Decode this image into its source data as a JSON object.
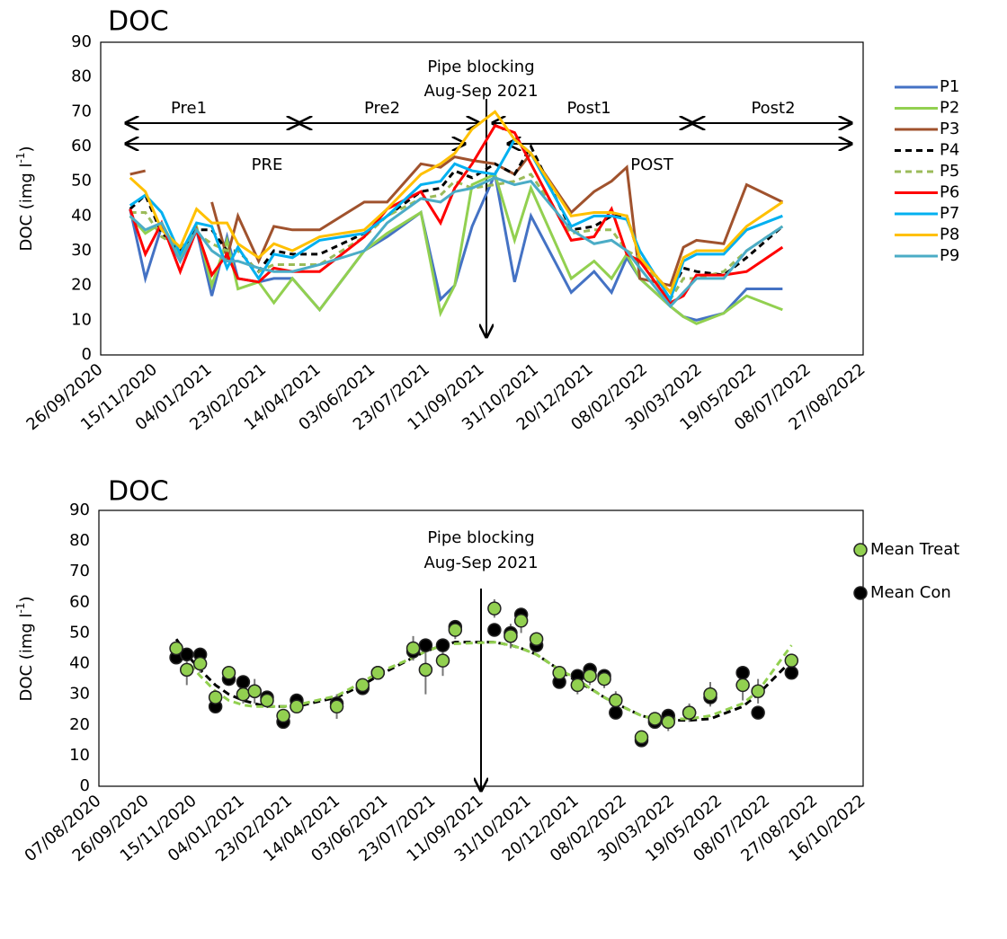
{
  "chart_data": [
    {
      "type": "line",
      "title": "DOC",
      "y_label": "DOC  (img l",
      "y_label_sup": "-1",
      "y_label_end": ")",
      "x": [
        "23/10/2020",
        "06/11/2020",
        "21/11/2020",
        "08/12/2020",
        "23/12/2020",
        "06/01/2021",
        "20/01/2021",
        "30/01/2021",
        "18/02/2021",
        "04/03/2021",
        "21/03/2021",
        "15/04/2021",
        "26/05/2021",
        "16/06/2021",
        "17/07/2021",
        "04/08/2021",
        "17/08/2021",
        "02/09/2021",
        "23/09/2021",
        "11/10/2021",
        "26/10/2021",
        "02/12/2021",
        "23/12/2021",
        "08/01/2022",
        "22/01/2022",
        "03/02/2022",
        "03/03/2022",
        "15/03/2022",
        "27/03/2022",
        "21/04/2022",
        "12/05/2022",
        "14/06/2022"
      ],
      "series": [
        {
          "name": "P1",
          "color": "#4472c4",
          "dash": false,
          "values": [
            42,
            22,
            37,
            27,
            36,
            17,
            34,
            22,
            21,
            22,
            22,
            13,
            30,
            34,
            41,
            16,
            20,
            37,
            52,
            21,
            40,
            18,
            24,
            18,
            28,
            22,
            14,
            11,
            10,
            12,
            19,
            19
          ]
        },
        {
          "name": "P2",
          "color": "#92d050",
          "dash": false,
          "values": [
            40,
            35,
            38,
            28,
            37,
            20,
            33,
            19,
            21,
            15,
            22,
            13,
            30,
            35,
            41,
            12,
            20,
            49,
            52,
            33,
            48,
            22,
            27,
            22,
            29,
            22,
            14,
            11,
            9,
            12,
            17,
            13
          ]
        },
        {
          "name": "P3",
          "color": "#a0522d",
          "dash": false,
          "values": [
            52,
            53,
            null,
            null,
            null,
            44,
            28,
            40,
            27,
            37,
            36,
            36,
            44,
            44,
            55,
            54,
            57,
            56,
            55,
            52,
            58,
            41,
            47,
            50,
            54,
            22,
            20,
            31,
            33,
            32,
            49,
            44
          ]
        },
        {
          "name": "P4",
          "color": "#000000",
          "dash": true,
          "values": [
            42,
            46,
            35,
            30,
            36,
            36,
            30,
            30,
            24,
            30,
            29,
            29,
            35,
            40,
            47,
            48,
            53,
            51,
            55,
            52,
            60,
            36,
            37,
            40,
            40,
            28,
            18,
            25,
            24,
            23,
            28,
            37
          ]
        },
        {
          "name": "P5",
          "color": "#9bbb59",
          "dash": true,
          "values": [
            41,
            41,
            34,
            31,
            35,
            32,
            30,
            30,
            24,
            26,
            26,
            26,
            34,
            40,
            45,
            46,
            50,
            48,
            49,
            50,
            52,
            35,
            36,
            36,
            30,
            28,
            16,
            22,
            22,
            24,
            30,
            37
          ]
        },
        {
          "name": "P6",
          "color": "#ff0000",
          "dash": false,
          "values": [
            42,
            29,
            38,
            24,
            36,
            23,
            29,
            22,
            21,
            25,
            24,
            24,
            34,
            42,
            47,
            38,
            48,
            55,
            66,
            64,
            55,
            33,
            34,
            42,
            29,
            27,
            15,
            17,
            23,
            23,
            24,
            31
          ]
        },
        {
          "name": "P7",
          "color": "#00b0f0",
          "dash": false,
          "values": [
            43,
            46,
            41,
            29,
            38,
            37,
            25,
            31,
            22,
            29,
            28,
            33,
            35,
            40,
            49,
            50,
            55,
            53,
            52,
            62,
            58,
            37,
            40,
            40,
            39,
            30,
            16,
            27,
            29,
            29,
            36,
            40
          ]
        },
        {
          "name": "P8",
          "color": "#ffc000",
          "dash": false,
          "values": [
            51,
            47,
            36,
            31,
            42,
            38,
            38,
            32,
            28,
            32,
            30,
            34,
            36,
            42,
            52,
            55,
            58,
            65,
            70,
            62,
            58,
            40,
            41,
            41,
            40,
            28,
            18,
            28,
            30,
            30,
            37,
            44
          ]
        },
        {
          "name": "P9",
          "color": "#4bacc6",
          "dash": false,
          "values": [
            40,
            36,
            38,
            27,
            36,
            30,
            27,
            27,
            25,
            24,
            24,
            26,
            30,
            38,
            45,
            44,
            47,
            48,
            51,
            49,
            50,
            36,
            32,
            33,
            30,
            25,
            14,
            18,
            22,
            22,
            30,
            37
          ]
        }
      ],
      "xlim": [
        "26/09/2020",
        "27/08/2022"
      ],
      "xticks": [
        "26/09/2020",
        "15/11/2020",
        "04/01/2021",
        "23/02/2021",
        "14/04/2021",
        "03/06/2021",
        "23/07/2021",
        "11/09/2021",
        "31/10/2021",
        "20/12/2021",
        "08/02/2022",
        "30/03/2022",
        "19/05/2022",
        "08/07/2022",
        "27/08/2022"
      ],
      "ylim": [
        0,
        90
      ],
      "yticks": [
        0,
        10,
        20,
        30,
        40,
        50,
        60,
        70,
        80,
        90
      ],
      "grid": false,
      "legend": "right",
      "annotations": {
        "event": "Pipe blocking",
        "period": "Aug-Sep 2021",
        "pre1": "Pre1",
        "pre2": "Pre2",
        "post1": "Post1",
        "post2": "Post2",
        "pre": "PRE",
        "post": "POST"
      }
    },
    {
      "type": "scatter",
      "title": "DOC",
      "y_label": "DOC  (img l",
      "y_label_sup": "-1",
      "y_label_end": ")",
      "x": [
        "27/10/2020",
        "07/11/2020",
        "21/11/2020",
        "07/12/2020",
        "21/12/2020",
        "05/01/2021",
        "17/01/2021",
        "30/01/2021",
        "16/02/2021",
        "02/03/2021",
        "13/04/2021",
        "10/05/2021",
        "26/05/2021",
        "02/07/2021",
        "15/07/2021",
        "02/08/2021",
        "15/08/2021",
        "25/09/2021",
        "12/10/2021",
        "23/10/2021",
        "08/11/2021",
        "02/12/2021",
        "21/12/2021",
        "03/01/2022",
        "18/01/2022",
        "30/01/2022",
        "26/02/2022",
        "12/03/2022",
        "26/03/2022",
        "17/04/2022",
        "09/05/2022",
        "12/06/2022",
        "28/06/2022",
        "02/08/2022"
      ],
      "series": [
        {
          "name": "Mean Treat",
          "color": "#92d050",
          "values": [
            45,
            38,
            40,
            29,
            37,
            30,
            31,
            28,
            23,
            26,
            26,
            33,
            37,
            45,
            38,
            41,
            51,
            58,
            49,
            54,
            48,
            37,
            33,
            36,
            35,
            28,
            16,
            22,
            21,
            24,
            30,
            33,
            31,
            41
          ],
          "errors": [
            2,
            5,
            3,
            2,
            2,
            3,
            4,
            2,
            2,
            2,
            4,
            2,
            2,
            4,
            8,
            5,
            3,
            3,
            4,
            4,
            2,
            2,
            3,
            3,
            3,
            3,
            2,
            2,
            3,
            3,
            4,
            5,
            4,
            2
          ]
        },
        {
          "name": "Mean Con",
          "color": "#000000",
          "values": [
            42,
            43,
            43,
            26,
            35,
            34,
            31,
            29,
            21,
            28,
            27,
            32,
            37,
            44,
            46,
            46,
            52,
            51,
            50,
            56,
            46,
            34,
            36,
            38,
            36,
            24,
            15,
            21,
            23,
            24,
            29,
            37,
            24,
            37
          ]
        }
      ],
      "fits": [
        {
          "color": "#000000",
          "values": [
            48,
            43,
            38,
            33,
            30,
            28,
            27,
            26,
            26,
            26,
            29,
            33,
            36,
            42,
            44,
            46,
            47,
            47,
            46,
            45,
            43,
            38,
            34,
            32,
            29,
            27,
            23,
            22,
            21.5,
            21.5,
            22,
            26,
            30,
            41
          ]
        },
        {
          "color": "#92d050",
          "values": [
            46,
            41,
            36,
            31,
            28,
            26.5,
            26,
            26,
            26,
            26.5,
            29.5,
            34,
            37,
            42,
            44,
            46,
            46.5,
            47,
            46,
            45,
            43,
            38,
            35,
            32,
            29,
            27,
            23,
            22,
            22,
            22,
            23,
            27,
            31,
            46
          ]
        }
      ],
      "xlim": [
        "07/08/2020",
        "16/10/2022"
      ],
      "xticks": [
        "07/08/2020",
        "26/09/2020",
        "15/11/2020",
        "04/01/2021",
        "23/02/2021",
        "14/04/2021",
        "03/06/2021",
        "23/07/2021",
        "11/09/2021",
        "31/10/2021",
        "20/12/2021",
        "08/02/2022",
        "30/03/2022",
        "19/05/2022",
        "08/07/2022",
        "27/08/2022",
        "16/10/2022"
      ],
      "ylim": [
        0,
        90
      ],
      "yticks": [
        0,
        10,
        20,
        30,
        40,
        50,
        60,
        70,
        80,
        90
      ],
      "grid": false,
      "legend": "right",
      "annotations": {
        "event": "Pipe blocking",
        "period": "Aug-Sep 2021"
      }
    }
  ]
}
